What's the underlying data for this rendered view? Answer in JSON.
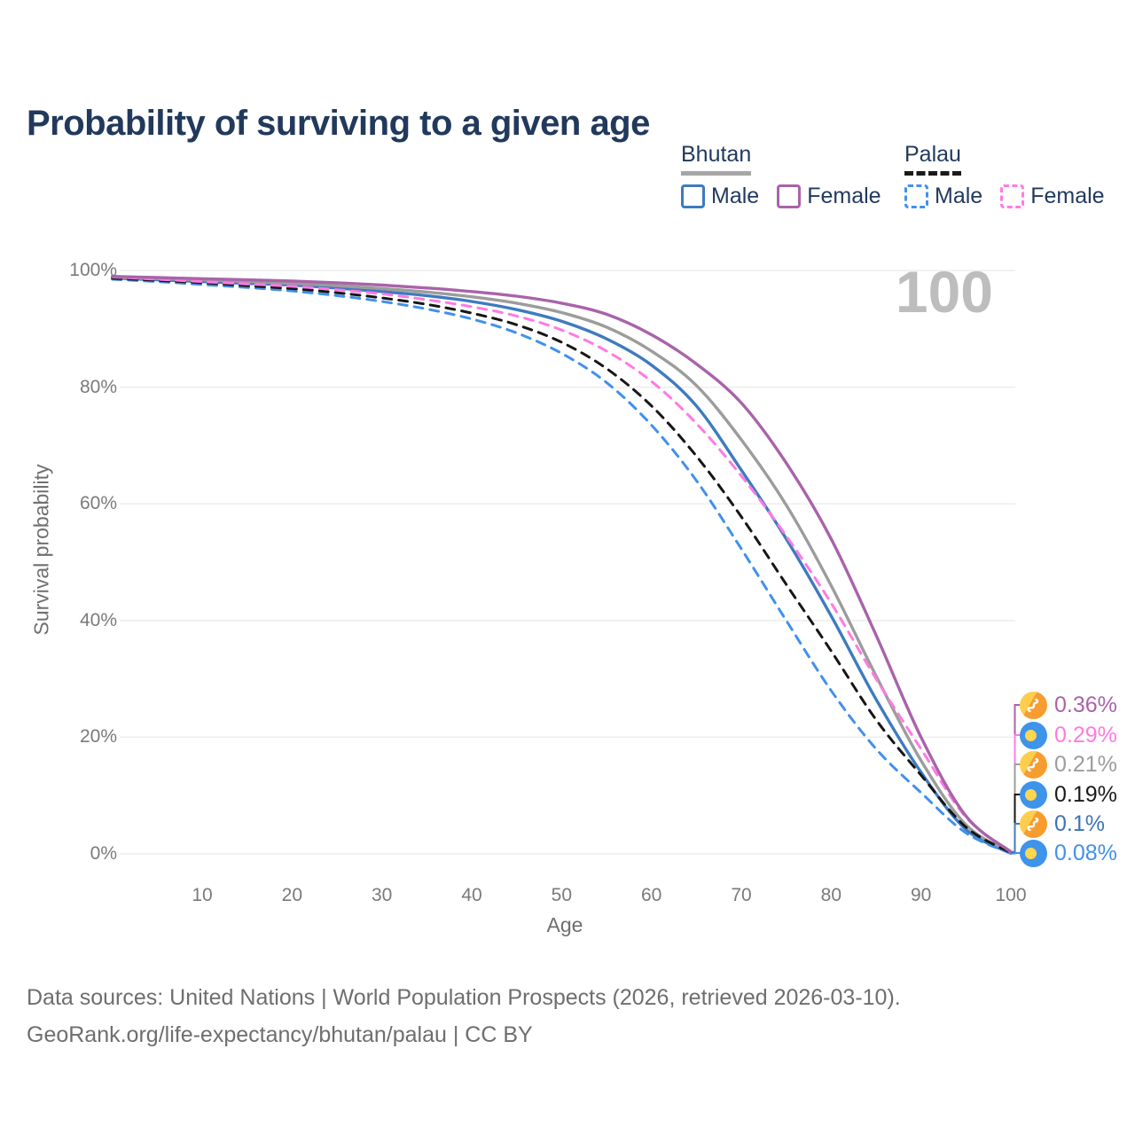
{
  "title": "Probability of surviving to a given age",
  "watermark": "100",
  "legend": {
    "groups": [
      {
        "label": "Bhutan",
        "underline_style": "solid",
        "underline_color": "#a6a6a6",
        "items": [
          {
            "label": "Male",
            "color": "#3e7bbf",
            "style": "solid"
          },
          {
            "label": "Female",
            "color": "#a963aa",
            "style": "solid"
          }
        ]
      },
      {
        "label": "Palau",
        "underline_style": "dashed",
        "underline_color": "#1a1a1a",
        "items": [
          {
            "label": "Male",
            "color": "#4190ee",
            "style": "dashed"
          },
          {
            "label": "Female",
            "color": "#ff7ae3",
            "style": "dashed"
          }
        ]
      }
    ]
  },
  "chart_data": {
    "type": "line",
    "title": "Probability of surviving to a given age",
    "xlabel": "Age",
    "ylabel": "Survival probability",
    "xlim": [
      0,
      100
    ],
    "ylim": [
      0,
      100
    ],
    "grid": "horizontal",
    "x_ticks": [
      10,
      20,
      30,
      40,
      50,
      60,
      70,
      80,
      90,
      100
    ],
    "y_ticks": [
      {
        "label": "100%",
        "value": 100
      },
      {
        "label": "80%",
        "value": 80
      },
      {
        "label": "60%",
        "value": 60
      },
      {
        "label": "40%",
        "value": 40
      },
      {
        "label": "20%",
        "value": 20
      },
      {
        "label": "0%",
        "value": 0
      }
    ],
    "x": [
      0,
      5,
      10,
      15,
      20,
      25,
      30,
      35,
      40,
      45,
      50,
      55,
      60,
      65,
      70,
      75,
      80,
      85,
      90,
      95,
      100
    ],
    "series": [
      {
        "id": "bhutan-male",
        "country": "Bhutan",
        "sex": "Male",
        "line": "solid",
        "color": "#3e7bbf",
        "end_label": "0.1%",
        "values": [
          98.7,
          98.4,
          98.1,
          97.8,
          97.5,
          97.0,
          96.4,
          95.7,
          94.7,
          93.3,
          91.3,
          88.3,
          83.8,
          76.8,
          65.8,
          54.0,
          40.8,
          26.5,
          14.0,
          4.2,
          0.1
        ]
      },
      {
        "id": "bhutan-all",
        "country": "Bhutan",
        "sex": "Both",
        "line": "solid",
        "color": "#9c9c9c",
        "end_label": "0.21%",
        "values": [
          98.8,
          98.6,
          98.4,
          98.1,
          97.8,
          97.4,
          96.9,
          96.3,
          95.5,
          94.4,
          92.8,
          90.3,
          86.2,
          80.3,
          71.0,
          59.8,
          46.0,
          30.5,
          16.0,
          5.0,
          0.21
        ]
      },
      {
        "id": "palau-male",
        "country": "Palau",
        "sex": "Male",
        "line": "dashed",
        "color": "#4190ee",
        "end_label": "0.08%",
        "values": [
          98.5,
          98.1,
          97.6,
          97.1,
          96.5,
          95.7,
          94.7,
          93.4,
          91.7,
          89.3,
          85.8,
          80.8,
          73.5,
          64.0,
          52.3,
          40.0,
          28.0,
          18.0,
          10.5,
          3.6,
          0.08
        ]
      },
      {
        "id": "palau-all",
        "country": "Palau",
        "sex": "Both",
        "line": "dashed",
        "color": "#161616",
        "end_label": "0.19%",
        "values": [
          98.7,
          98.3,
          97.9,
          97.4,
          96.9,
          96.2,
          95.3,
          94.2,
          92.7,
          90.7,
          87.7,
          83.2,
          76.8,
          68.2,
          57.8,
          46.2,
          34.8,
          23.0,
          13.5,
          4.6,
          0.19
        ]
      },
      {
        "id": "palau-female",
        "country": "Palau",
        "sex": "Female",
        "line": "dashed",
        "color": "#ff7ae3",
        "end_label": "0.29%",
        "values": [
          98.9,
          98.5,
          98.1,
          97.7,
          97.3,
          96.7,
          96.0,
          95.0,
          93.8,
          92.2,
          89.8,
          86.2,
          81.0,
          73.8,
          64.8,
          54.5,
          43.0,
          30.0,
          18.0,
          6.3,
          0.29
        ]
      },
      {
        "id": "bhutan-female",
        "country": "Bhutan",
        "sex": "Female",
        "line": "solid",
        "color": "#a963aa",
        "end_label": "0.36%",
        "values": [
          99.0,
          98.8,
          98.6,
          98.4,
          98.2,
          97.9,
          97.5,
          97.0,
          96.4,
          95.6,
          94.4,
          92.5,
          89.0,
          84.0,
          77.3,
          67.0,
          54.0,
          37.5,
          20.0,
          6.5,
          0.36
        ]
      }
    ],
    "end_labels": [
      {
        "flag": "bhutan",
        "text": "0.36%",
        "color": "#a963aa",
        "series": "bhutan-female"
      },
      {
        "flag": "palau",
        "text": "0.29%",
        "color": "#ff7ae3",
        "series": "palau-female"
      },
      {
        "flag": "bhutan",
        "text": "0.21%",
        "color": "#9c9c9c",
        "series": "bhutan-all"
      },
      {
        "flag": "palau",
        "text": "0.19%",
        "color": "#1b1b1b",
        "series": "palau-all"
      },
      {
        "flag": "bhutan",
        "text": "0.1%",
        "color": "#3e74b4",
        "series": "bhutan-male"
      },
      {
        "flag": "palau",
        "text": "0.08%",
        "color": "#4190ee",
        "series": "palau-male"
      }
    ],
    "legend_position": "top-right"
  },
  "footer": {
    "line1": "Data sources: United Nations | World Population Prospects (2026, retrieved 2026-03-10).",
    "line2": "GeoRank.org/life-expectancy/bhutan/palau | CC BY"
  }
}
